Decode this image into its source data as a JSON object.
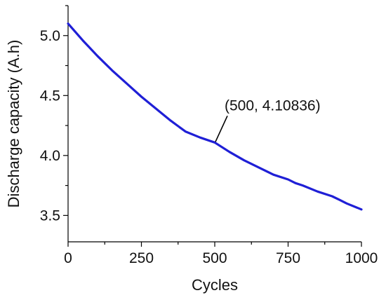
{
  "colors": {
    "series": "#1f1fd6",
    "axis": "#000000"
  },
  "chart_data": {
    "type": "line",
    "title": "",
    "xlabel": "Cycles",
    "ylabel": "Discharge capacity (A.h)",
    "xlim": [
      0,
      1000
    ],
    "ylim": [
      3.28,
      5.25
    ],
    "x_ticks": [
      0,
      250,
      500,
      750,
      1000
    ],
    "x_tick_labels": [
      "0",
      "250",
      "500",
      "750",
      "1000"
    ],
    "y_ticks": [
      3.5,
      4.0,
      4.5,
      5.0
    ],
    "y_tick_labels": [
      "3.5",
      "4.0",
      "4.5",
      "5.0"
    ],
    "grid": false,
    "series": [
      {
        "x": [
          0,
          50,
          100,
          150,
          200,
          250,
          300,
          350,
          400,
          450,
          500,
          550,
          600,
          650,
          700,
          750,
          775,
          800,
          850,
          900,
          925,
          950,
          1000
        ],
        "y": [
          5.1,
          4.96,
          4.83,
          4.71,
          4.6,
          4.49,
          4.39,
          4.29,
          4.2,
          4.15,
          4.10836,
          4.03,
          3.96,
          3.9,
          3.84,
          3.8,
          3.77,
          3.75,
          3.7,
          3.66,
          3.63,
          3.6,
          3.55
        ]
      }
    ],
    "annotations": [
      {
        "text": "(500, 4.10836)",
        "x": 500,
        "y": 4.10836
      }
    ]
  }
}
